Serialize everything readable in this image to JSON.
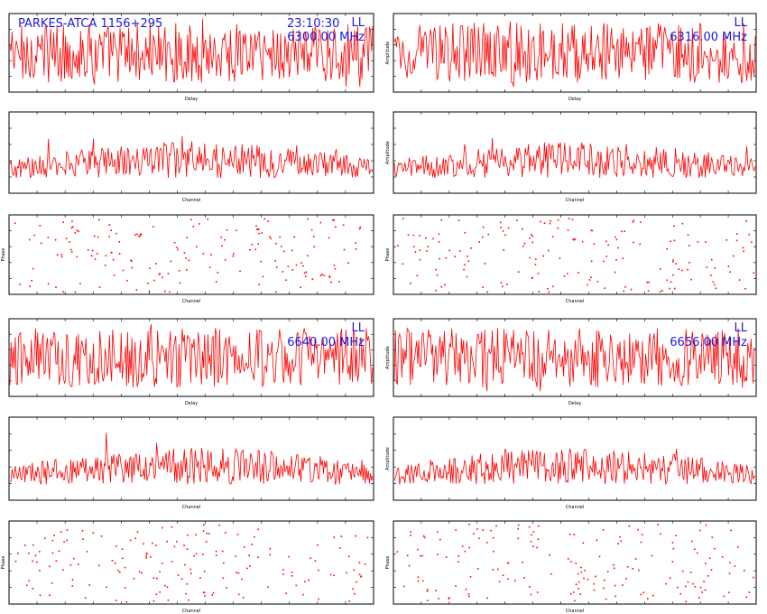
{
  "header": {
    "source": "PARKES-ATCA  1156+295",
    "time": "23:10:30",
    "polarization": "LL"
  },
  "colors": {
    "trace": "#ff0000",
    "frame": "#000000",
    "header_text": "#1a1adf"
  },
  "chart_data": [
    {
      "id": "delay-6300",
      "type": "line",
      "freq": "6300.00 MHz",
      "pol": "LL",
      "xlabel": "Delay",
      "ylabel": "",
      "xlim": [
        -256,
        256
      ],
      "ylim": [
        -8,
        8
      ]
    },
    {
      "id": "delay-6316",
      "type": "line",
      "freq": "6316.00 MHz",
      "pol": "LL",
      "xlabel": "Delay",
      "ylabel": "Amplitude",
      "xlim": [
        -256,
        256
      ],
      "ylim": [
        -8,
        8
      ]
    },
    {
      "id": "channel-6300",
      "type": "line",
      "xlabel": "Channel",
      "ylabel": "",
      "xlim": [
        0,
        512
      ],
      "ylim": [
        0,
        6
      ]
    },
    {
      "id": "channel-6316",
      "type": "line",
      "xlabel": "Channel",
      "ylabel": "Amplitude",
      "xlim": [
        0,
        512
      ],
      "ylim": [
        0,
        6
      ]
    },
    {
      "id": "phase-6300",
      "type": "scatter",
      "xlabel": "Channel",
      "ylabel": "Phase",
      "xlim": [
        0,
        512
      ],
      "ylim": [
        -180,
        180
      ]
    },
    {
      "id": "phase-6316",
      "type": "scatter",
      "xlabel": "Channel",
      "ylabel": "Phase",
      "xlim": [
        0,
        512
      ],
      "ylim": [
        -180,
        180
      ]
    },
    {
      "id": "delay-6640",
      "type": "line",
      "freq": "6640.00 MHz",
      "pol": "LL",
      "xlabel": "Delay",
      "ylabel": "",
      "xlim": [
        -256,
        256
      ],
      "ylim": [
        -8,
        8
      ]
    },
    {
      "id": "delay-6656",
      "type": "line",
      "freq": "6656.00 MHz",
      "pol": "LL",
      "xlabel": "Delay",
      "ylabel": "Amplitude",
      "xlim": [
        -256,
        256
      ],
      "ylim": [
        -8,
        8
      ]
    },
    {
      "id": "channel-6640",
      "type": "line",
      "xlabel": "Channel",
      "ylabel": "",
      "xlim": [
        0,
        512
      ],
      "ylim": [
        0,
        6
      ]
    },
    {
      "id": "channel-6656",
      "type": "line",
      "xlabel": "Channel",
      "ylabel": "Amplitude",
      "xlim": [
        0,
        512
      ],
      "ylim": [
        0,
        6
      ]
    },
    {
      "id": "phase-6640",
      "type": "scatter",
      "xlabel": "Channel",
      "ylabel": "Phase",
      "xlim": [
        0,
        512
      ],
      "ylim": [
        -180,
        180
      ]
    },
    {
      "id": "phase-6656",
      "type": "scatter",
      "xlabel": "Channel",
      "ylabel": "Phase",
      "xlim": [
        0,
        512
      ],
      "ylim": [
        -180,
        180
      ]
    }
  ]
}
